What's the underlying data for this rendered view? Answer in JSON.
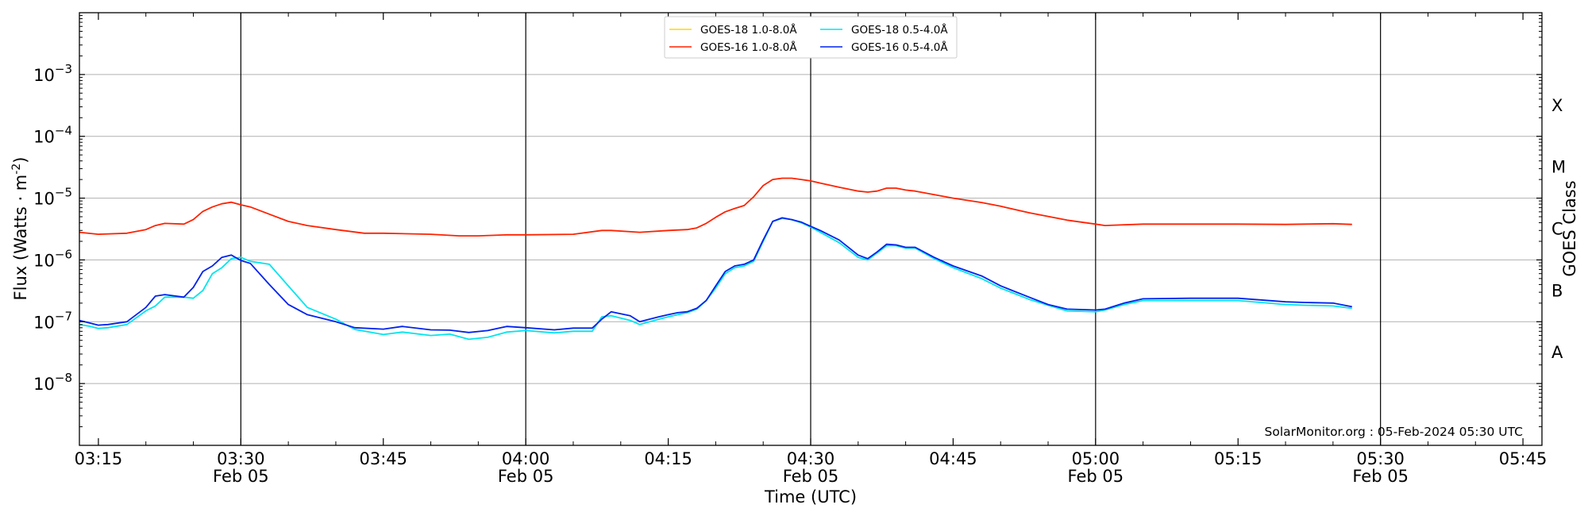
{
  "chart_data": {
    "type": "line",
    "xlabel": "Time (UTC)",
    "ylabel": "Flux (Watts · m",
    "ylabel_exponent": "-2",
    "ylabel_suffix": ")",
    "y2label": "GOES Class",
    "yscale": "log",
    "xlim": [
      "03:13",
      "05:47"
    ],
    "ylim": [
      1e-09,
      0.01
    ],
    "x_ticks": [
      {
        "time": "03:15",
        "label": "03:15",
        "date": ""
      },
      {
        "time": "03:30",
        "label": "03:30",
        "date": "Feb 05"
      },
      {
        "time": "03:45",
        "label": "03:45",
        "date": ""
      },
      {
        "time": "04:00",
        "label": "04:00",
        "date": "Feb 05"
      },
      {
        "time": "04:15",
        "label": "04:15",
        "date": ""
      },
      {
        "time": "04:30",
        "label": "04:30",
        "date": "Feb 05"
      },
      {
        "time": "04:45",
        "label": "04:45",
        "date": ""
      },
      {
        "time": "05:00",
        "label": "05:00",
        "date": "Feb 05"
      },
      {
        "time": "05:15",
        "label": "05:15",
        "date": ""
      },
      {
        "time": "05:30",
        "label": "05:30",
        "date": "Feb 05"
      },
      {
        "time": "05:45",
        "label": "05:45",
        "date": ""
      }
    ],
    "vertical_lines": [
      "03:30",
      "04:00",
      "04:30",
      "05:00",
      "05:30"
    ],
    "y_ticks": [
      {
        "exp": -3,
        "base": "10",
        "power": "−3"
      },
      {
        "exp": -4,
        "base": "10",
        "power": "−4"
      },
      {
        "exp": -5,
        "base": "10",
        "power": "−5"
      },
      {
        "exp": -6,
        "base": "10",
        "power": "−6"
      },
      {
        "exp": -7,
        "base": "10",
        "power": "−7"
      },
      {
        "exp": -8,
        "base": "10",
        "power": "−8"
      }
    ],
    "goes_classes": [
      {
        "label": "X",
        "exp": -3.5
      },
      {
        "label": "M",
        "exp": -4.5
      },
      {
        "label": "C",
        "exp": -5.5
      },
      {
        "label": "B",
        "exp": -6.5
      },
      {
        "label": "A",
        "exp": -7.5
      }
    ],
    "grid": true,
    "legend_position": "top-center",
    "credit": "SolarMonitor.org : 05-Feb-2024 05:30 UTC",
    "series": [
      {
        "name": "GOES-18 1.0-8.0Å",
        "color": "#ffd700",
        "x": [],
        "y": []
      },
      {
        "name": "GOES-16 1.0-8.0Å",
        "color": "#ff2200",
        "x": [
          "03:13",
          "03:15",
          "03:18",
          "03:20",
          "03:21",
          "03:22",
          "03:24",
          "03:25",
          "03:26",
          "03:27",
          "03:28",
          "03:29",
          "03:30",
          "03:31",
          "03:33",
          "03:35",
          "03:37",
          "03:40",
          "03:43",
          "03:45",
          "03:50",
          "03:53",
          "03:55",
          "03:58",
          "04:00",
          "04:05",
          "04:08",
          "04:09",
          "04:12",
          "04:15",
          "04:17",
          "04:18",
          "04:19",
          "04:20",
          "04:21",
          "04:22",
          "04:23",
          "04:24",
          "04:25",
          "04:26",
          "04:27",
          "04:28",
          "04:29",
          "04:30",
          "04:31",
          "04:33",
          "04:35",
          "04:36",
          "04:37",
          "04:38",
          "04:39",
          "04:40",
          "04:41",
          "04:45",
          "04:48",
          "04:50",
          "04:53",
          "04:57",
          "05:00",
          "05:01",
          "05:05",
          "05:10",
          "05:15",
          "05:20",
          "05:22",
          "05:25",
          "05:27"
        ],
        "y": [
          2.8e-06,
          2.6e-06,
          2.7e-06,
          3.1e-06,
          3.6e-06,
          3.9e-06,
          3.8e-06,
          4.5e-06,
          6.1e-06,
          7.2e-06,
          8.1e-06,
          8.6e-06,
          7.8e-06,
          7.2e-06,
          5.5e-06,
          4.2e-06,
          3.6e-06,
          3.1e-06,
          2.7e-06,
          2.7e-06,
          2.6e-06,
          2.45e-06,
          2.45e-06,
          2.55e-06,
          2.55e-06,
          2.6e-06,
          3e-06,
          3e-06,
          2.8e-06,
          3e-06,
          3.1e-06,
          3.3e-06,
          3.9e-06,
          4.9e-06,
          6e-06,
          6.8e-06,
          7.6e-06,
          1.05e-05,
          1.6e-05,
          2e-05,
          2.1e-05,
          2.1e-05,
          2e-05,
          1.9e-05,
          1.75e-05,
          1.5e-05,
          1.3e-05,
          1.25e-05,
          1.3e-05,
          1.45e-05,
          1.45e-05,
          1.35e-05,
          1.3e-05,
          1e-05,
          8.5e-06,
          7.4e-06,
          5.8e-06,
          4.4e-06,
          3.8e-06,
          3.6e-06,
          3.8e-06,
          3.8e-06,
          3.8e-06,
          3.75e-06,
          3.8e-06,
          3.85e-06,
          3.75e-06
        ]
      },
      {
        "name": "GOES-18 0.5-4.0Å",
        "color": "#00e5ee",
        "x": [
          "03:13",
          "03:14",
          "03:15",
          "03:16",
          "03:18",
          "03:20",
          "03:21",
          "03:22",
          "03:24",
          "03:25",
          "03:26",
          "03:27",
          "03:28",
          "03:29",
          "03:30",
          "03:31",
          "03:33",
          "03:35",
          "03:37",
          "03:40",
          "03:42",
          "03:45",
          "03:47",
          "03:50",
          "03:52",
          "03:54",
          "03:56",
          "03:58",
          "04:00",
          "04:03",
          "04:05",
          "04:07",
          "04:08",
          "04:09",
          "04:11",
          "04:12",
          "04:14",
          "04:15",
          "04:16",
          "04:17",
          "04:18",
          "04:19",
          "04:20",
          "04:21",
          "04:22",
          "04:23",
          "04:24",
          "04:25",
          "04:26",
          "04:27",
          "04:28",
          "04:29",
          "04:30",
          "04:31",
          "04:33",
          "04:35",
          "04:36",
          "04:37",
          "04:38",
          "04:39",
          "04:40",
          "04:41",
          "04:43",
          "04:45",
          "04:48",
          "04:50",
          "04:53",
          "04:55",
          "04:57",
          "05:00",
          "05:01",
          "05:03",
          "05:05",
          "05:10",
          "05:15",
          "05:20",
          "05:22",
          "05:25",
          "05:27"
        ],
        "y": [
          9e-08,
          8.5e-08,
          7.8e-08,
          8e-08,
          9e-08,
          1.5e-07,
          1.8e-07,
          2.5e-07,
          2.5e-07,
          2.4e-07,
          3.2e-07,
          6e-07,
          7.5e-07,
          1.05e-06,
          1.1e-06,
          9.5e-07,
          8.5e-07,
          3.8e-07,
          1.7e-07,
          1.1e-07,
          7.5e-08,
          6.2e-08,
          6.8e-08,
          6e-08,
          6.3e-08,
          5.2e-08,
          5.6e-08,
          6.8e-08,
          7.2e-08,
          6.6e-08,
          7e-08,
          7e-08,
          1.2e-07,
          1.25e-07,
          1.05e-07,
          9e-08,
          1.1e-07,
          1.2e-07,
          1.3e-07,
          1.4e-07,
          1.6e-07,
          2.2e-07,
          3.5e-07,
          6e-07,
          7.5e-07,
          8e-07,
          9.5e-07,
          2e-06,
          4.2e-06,
          4.7e-06,
          4.5e-06,
          4e-06,
          3.4e-06,
          2.8e-06,
          1.9e-06,
          1.1e-06,
          1e-06,
          1.3e-06,
          1.7e-06,
          1.7e-06,
          1.55e-06,
          1.55e-06,
          1.05e-06,
          7.5e-07,
          5e-07,
          3.5e-07,
          2.3e-07,
          1.85e-07,
          1.5e-07,
          1.45e-07,
          1.55e-07,
          1.9e-07,
          2.2e-07,
          2.2e-07,
          2.2e-07,
          1.9e-07,
          1.85e-07,
          1.8e-07,
          1.65e-07
        ]
      },
      {
        "name": "GOES-16 0.5-4.0Å",
        "color": "#0022ee",
        "x": [
          "03:13",
          "03:15",
          "03:16",
          "03:18",
          "03:20",
          "03:21",
          "03:22",
          "03:24",
          "03:25",
          "03:26",
          "03:27",
          "03:28",
          "03:29",
          "03:30",
          "03:31",
          "03:33",
          "03:35",
          "03:37",
          "03:40",
          "03:42",
          "03:45",
          "03:47",
          "03:50",
          "03:52",
          "03:54",
          "03:56",
          "03:58",
          "04:00",
          "04:03",
          "04:05",
          "04:07",
          "04:08",
          "04:09",
          "04:11",
          "04:12",
          "04:14",
          "04:15",
          "04:16",
          "04:17",
          "04:18",
          "04:19",
          "04:20",
          "04:21",
          "04:22",
          "04:23",
          "04:24",
          "04:25",
          "04:26",
          "04:27",
          "04:28",
          "04:29",
          "04:30",
          "04:31",
          "04:33",
          "04:35",
          "04:36",
          "04:37",
          "04:38",
          "04:39",
          "04:40",
          "04:41",
          "04:43",
          "04:45",
          "04:48",
          "04:50",
          "04:53",
          "04:55",
          "04:57",
          "05:00",
          "05:01",
          "05:03",
          "05:05",
          "05:10",
          "05:15",
          "05:20",
          "05:22",
          "05:25",
          "05:27"
        ],
        "y": [
          1.05e-07,
          8.8e-08,
          9e-08,
          1e-07,
          1.7e-07,
          2.6e-07,
          2.75e-07,
          2.5e-07,
          3.6e-07,
          6.5e-07,
          8e-07,
          1.1e-06,
          1.2e-06,
          9.8e-07,
          8.8e-07,
          4e-07,
          1.9e-07,
          1.3e-07,
          1e-07,
          8e-08,
          7.6e-08,
          8.4e-08,
          7.4e-08,
          7.3e-08,
          6.7e-08,
          7.2e-08,
          8.4e-08,
          8e-08,
          7.4e-08,
          7.9e-08,
          7.9e-08,
          1.1e-07,
          1.45e-07,
          1.25e-07,
          1e-07,
          1.2e-07,
          1.3e-07,
          1.4e-07,
          1.45e-07,
          1.65e-07,
          2.2e-07,
          3.8e-07,
          6.5e-07,
          8e-07,
          8.5e-07,
          1e-06,
          2.1e-06,
          4.2e-06,
          4.8e-06,
          4.5e-06,
          4.1e-06,
          3.5e-06,
          3e-06,
          2.1e-06,
          1.2e-06,
          1.05e-06,
          1.35e-06,
          1.8e-06,
          1.75e-06,
          1.6e-06,
          1.6e-06,
          1.1e-06,
          8e-07,
          5.5e-07,
          3.8e-07,
          2.5e-07,
          1.9e-07,
          1.6e-07,
          1.55e-07,
          1.6e-07,
          2e-07,
          2.35e-07,
          2.4e-07,
          2.4e-07,
          2.1e-07,
          2.05e-07,
          2e-07,
          1.75e-07
        ]
      }
    ]
  }
}
